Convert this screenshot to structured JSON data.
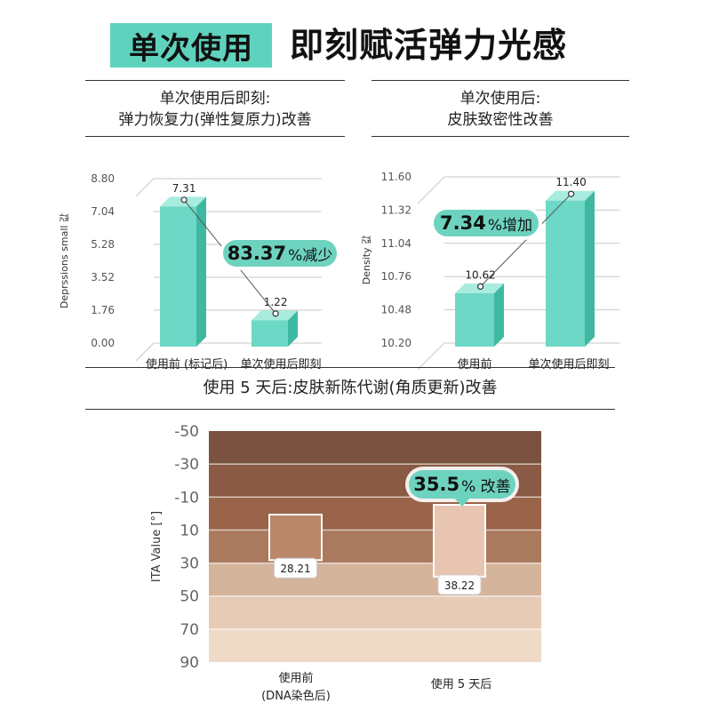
{
  "header": {
    "badge": "单次使用",
    "title": "即刻赋活弹力光感"
  },
  "panel1": {
    "title_line1": "单次使用后即刻:",
    "title_line2": "弹力恢复力(弹性复原力)改善",
    "callout_value": "83.37",
    "callout_suffix": "%减少"
  },
  "panel2": {
    "title_line1": "单次使用后:",
    "title_line2": "皮肤致密性改善",
    "callout_value": "7.34",
    "callout_suffix": "%增加"
  },
  "panel3": {
    "title": "使用 5 天后:皮肤新陈代谢(角质更新)改善",
    "callout_value": "35.5",
    "callout_suffix": "% 改善",
    "cat1_line1": "使用前",
    "cat1_line2": "(DNA染色后)",
    "cat2_line1": "使用 5 天后"
  },
  "colors": {
    "accent": "#5fd2bd",
    "bar_front": "#6dd8c5",
    "bar_side": "#3fb8a1",
    "bar_top": "#a8ece0",
    "ita_bands": [
      "#7b5240",
      "#8a5a44",
      "#9a644a",
      "#aa7a5e",
      "#d5b49c",
      "#e6cbb7",
      "#efd9c7",
      "#f3e2d0"
    ],
    "ita_box1": "#b9876a",
    "ita_box2": "#e8c5b0"
  },
  "chart_data": [
    {
      "type": "bar",
      "title": "单次使用后即刻: 弹力恢复力(弹性复原力)改善",
      "ylabel": "Deprssions small 값",
      "categories": [
        "使用前 (标记后)",
        "单次使用后即刻"
      ],
      "values": [
        7.31,
        1.22
      ],
      "value_labels": [
        "7.31",
        "1.22"
      ],
      "ylim": [
        0,
        8.8
      ],
      "yticks": [
        0,
        1.76,
        3.52,
        5.28,
        7.04,
        8.8
      ],
      "ytick_labels": [
        "0.00",
        "1.76",
        "3.52",
        "5.28",
        "7.04",
        "8.80"
      ],
      "grid": true
    },
    {
      "type": "bar",
      "title": "单次使用后: 皮肤致密性改善",
      "ylabel": "Density 값",
      "categories": [
        "使用前",
        "单次使用后即刻"
      ],
      "values": [
        10.62,
        11.4
      ],
      "value_labels": [
        "10.62",
        "11.40"
      ],
      "ylim": [
        10.2,
        11.6
      ],
      "yticks": [
        10.2,
        10.48,
        10.76,
        11.04,
        11.32,
        11.6
      ],
      "ytick_labels": [
        "10.20",
        "10.48",
        "10.76",
        "11.04",
        "11.32",
        "11.60"
      ],
      "grid": true
    },
    {
      "type": "bar",
      "title": "使用 5 天后:皮肤新陈代谢(角质更新)改善",
      "ylabel": "ITA Value [°]",
      "categories": [
        "使用前 (DNA染色后)",
        "使用 5 天后"
      ],
      "values": [
        28.21,
        38.22
      ],
      "value_labels": [
        "28.21",
        "38.22"
      ],
      "ylim": [
        -50,
        90
      ],
      "y_inverted": true,
      "yticks": [
        -50,
        -30,
        -10,
        10,
        30,
        50,
        70,
        90
      ],
      "ytick_labels": [
        "-50",
        "-30",
        "-10",
        "10",
        "30",
        "50",
        "70",
        "90"
      ]
    }
  ]
}
